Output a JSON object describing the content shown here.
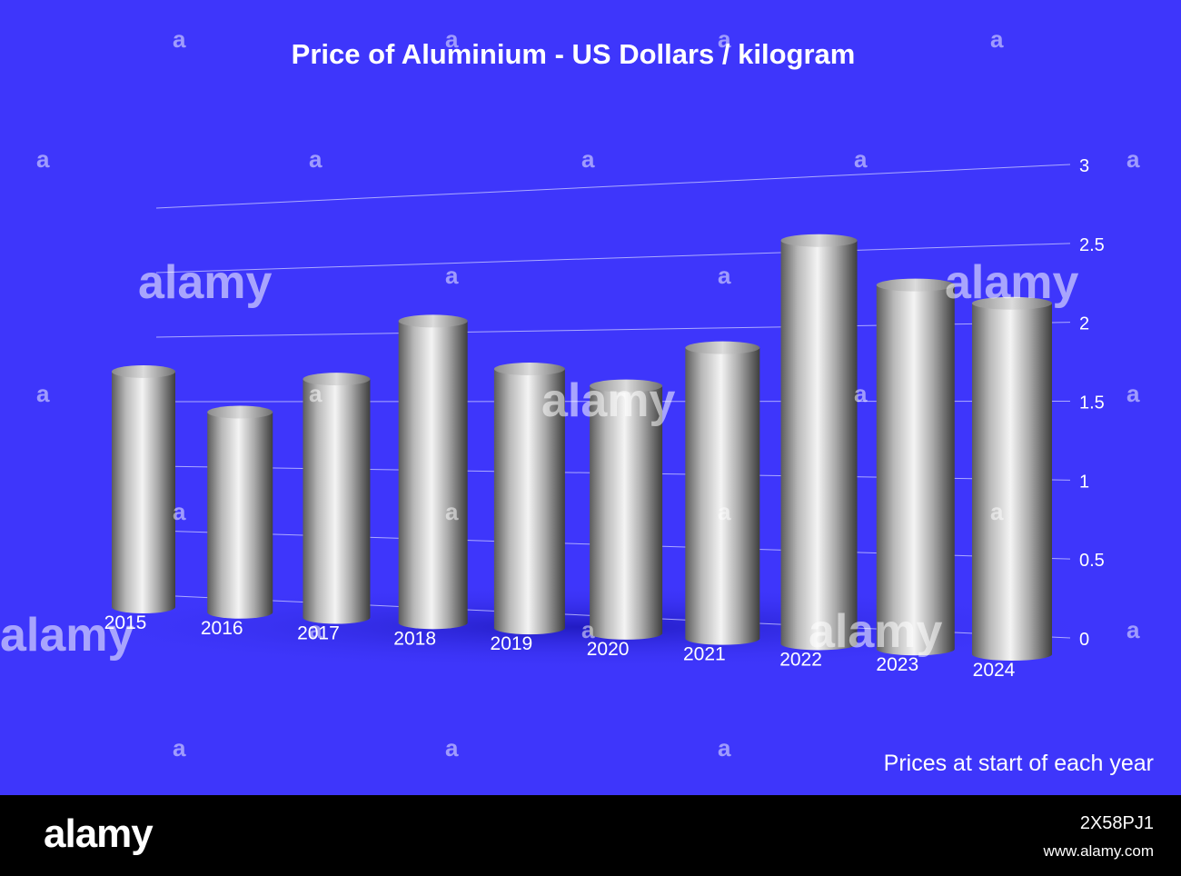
{
  "chart_data": {
    "type": "bar",
    "title": "Price of Aluminium - US Dollars / kilogram",
    "categories": [
      "2015",
      "2016",
      "2017",
      "2018",
      "2019",
      "2020",
      "2021",
      "2022",
      "2023",
      "2024"
    ],
    "values": [
      1.83,
      1.52,
      1.77,
      2.19,
      1.84,
      1.72,
      1.98,
      2.69,
      2.38,
      2.25
    ],
    "yticks": [
      "0",
      "0.5",
      "1",
      "1.5",
      "2",
      "2.5",
      "3"
    ],
    "ylim": [
      0,
      3
    ],
    "grid": true,
    "bar_style": "3d-cylinder-silver",
    "annotation": "Prices at start of each year"
  },
  "colors": {
    "background": "#3e36fb",
    "gridline": "#c8c8ff",
    "text": "#ffffff",
    "bar": "#c0c0c0",
    "footer": "#000000"
  },
  "watermark": {
    "text": "alamy",
    "small_mark": "a"
  },
  "footer": {
    "logo": "alamy",
    "image_id": "2X58PJ1",
    "url": "www.alamy.com"
  }
}
